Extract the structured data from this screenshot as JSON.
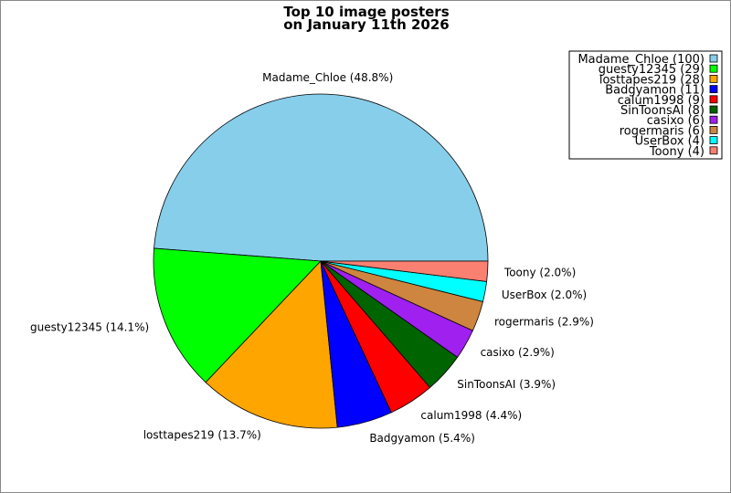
{
  "chart_data": {
    "type": "pie",
    "title": [
      "Top 10 image posters",
      "on January 11th 2026"
    ],
    "start_angle_deg": 0,
    "direction": "counterclockwise",
    "legend_position": "top-right",
    "slices": [
      {
        "name": "Madame_Chloe",
        "value": 100,
        "percent_label": "Madame_Chloe (48.8%)",
        "legend_label": "Madame_Chloe (100)",
        "color": "#87CEEB"
      },
      {
        "name": "guesty12345",
        "value": 29,
        "percent_label": "guesty12345 (14.1%)",
        "legend_label": "guesty12345 (29)",
        "color": "#00FF00"
      },
      {
        "name": "losttapes219",
        "value": 28,
        "percent_label": "losttapes219 (13.7%)",
        "legend_label": "losttapes219 (28)",
        "color": "#FFA500"
      },
      {
        "name": "Badgyamon",
        "value": 11,
        "percent_label": "Badgyamon (5.4%)",
        "legend_label": "Badgyamon (11)",
        "color": "#0000FF"
      },
      {
        "name": "calum1998",
        "value": 9,
        "percent_label": "calum1998 (4.4%)",
        "legend_label": "calum1998 (9)",
        "color": "#FF0000"
      },
      {
        "name": "SinToonsAI",
        "value": 8,
        "percent_label": "SinToonsAI (3.9%)",
        "legend_label": "SinToonsAI (8)",
        "color": "#006400"
      },
      {
        "name": "casixo",
        "value": 6,
        "percent_label": "casixo (2.9%)",
        "legend_label": "casixo (6)",
        "color": "#A020F0"
      },
      {
        "name": "rogermaris",
        "value": 6,
        "percent_label": "rogermaris (2.9%)",
        "legend_label": "rogermaris (6)",
        "color": "#CD853F"
      },
      {
        "name": "UserBox",
        "value": 4,
        "percent_label": "UserBox (2.0%)",
        "legend_label": "UserBox (4)",
        "color": "#00FFFF"
      },
      {
        "name": "Toony",
        "value": 4,
        "percent_label": "Toony (2.0%)",
        "legend_label": "Toony (4)",
        "color": "#FA8072"
      }
    ]
  }
}
